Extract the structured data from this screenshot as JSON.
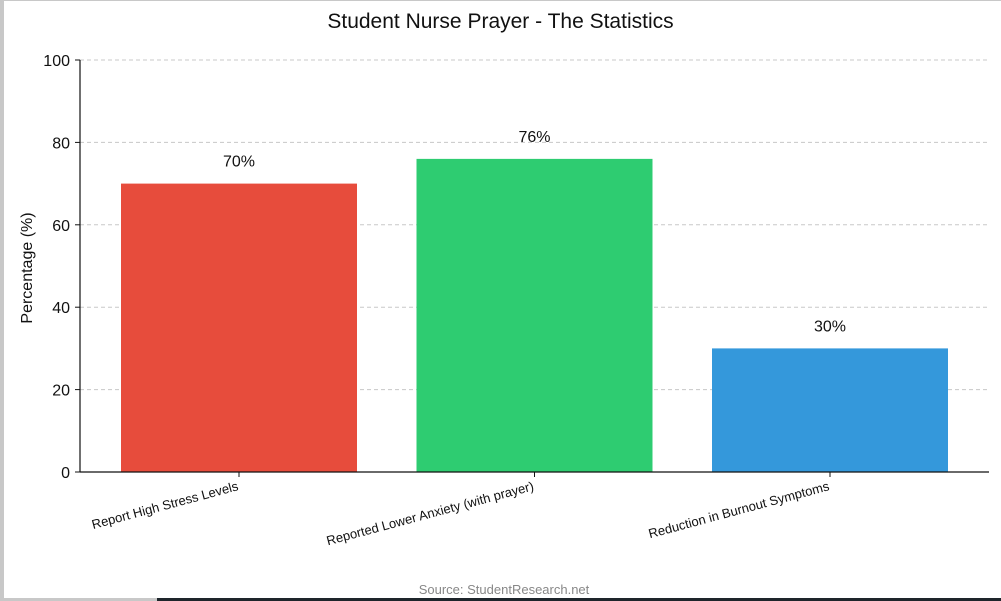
{
  "chart_data": {
    "type": "bar",
    "title": "Student Nurse Prayer - The Statistics",
    "xlabel": "",
    "ylabel": "Percentage (%)",
    "ylim": [
      0,
      100
    ],
    "yticks": [
      0,
      20,
      40,
      60,
      80,
      100
    ],
    "grid": {
      "y": true,
      "style": "dashed"
    },
    "categories": [
      "Report High Stress Levels",
      "Reported Lower Anxiety (with prayer)",
      "Reduction in Burnout Symptoms"
    ],
    "values": [
      70,
      76,
      30
    ],
    "value_labels": [
      "70%",
      "76%",
      "30%"
    ],
    "colors": [
      "#e74c3c",
      "#2ecc71",
      "#3498db"
    ],
    "legend": null,
    "annotations": [
      "Source: StudentResearch.net"
    ]
  },
  "header": {
    "title": "Student Nurse Prayer - The Statistics"
  },
  "axis": {
    "ylabel": "Percentage (%)"
  },
  "footer": {
    "source": "Source: StudentResearch.net"
  }
}
